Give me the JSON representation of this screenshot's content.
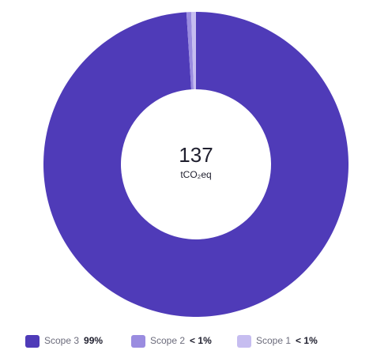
{
  "chart_data": {
    "type": "donut",
    "categories": [
      "Scope 3",
      "Scope 2",
      "Scope 1"
    ],
    "values": [
      99,
      0.5,
      0.5
    ],
    "value_labels": [
      "99%",
      "< 1%",
      "< 1%"
    ],
    "colors": [
      "#4f3bb8",
      "#9a8ce0",
      "#c6bdf0"
    ],
    "total": 137,
    "unit": "tCO₂eq"
  }
}
